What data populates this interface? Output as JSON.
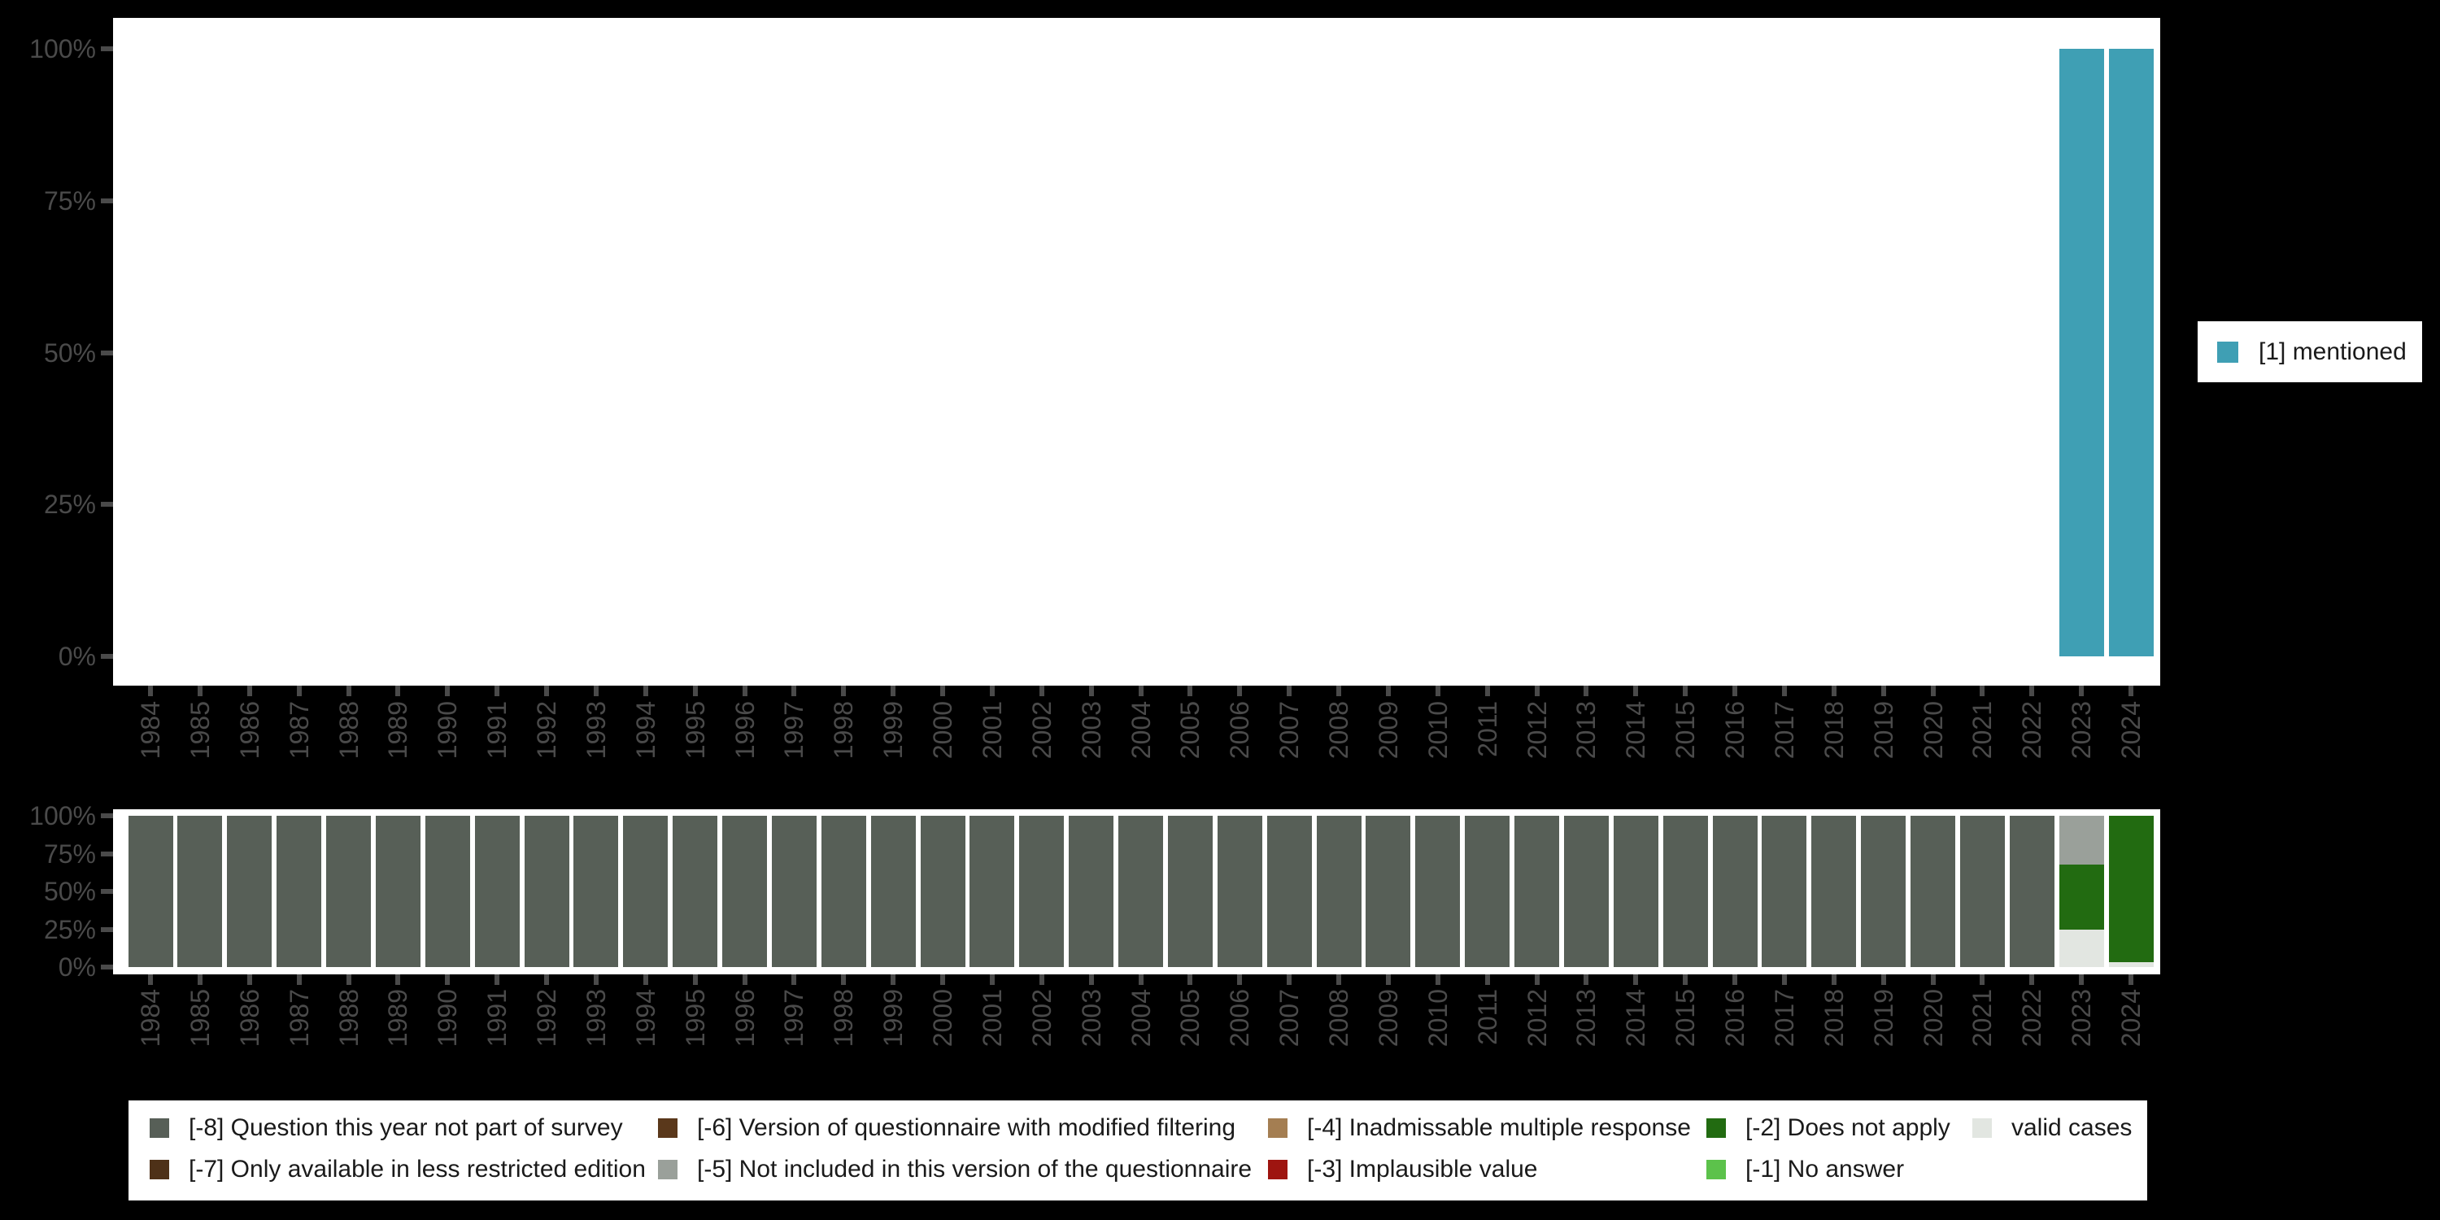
{
  "background_color": "#000000",
  "panel_color": "#ffffff",
  "axis": {
    "tick_color": "#4a4a4a",
    "label_color": "#4a4a4a"
  },
  "colors": {
    "mentioned": "#3f9fb4",
    "minus8": "#575f57",
    "minus7": "#4e3118",
    "minus6": "#5a381b",
    "minus5": "#9aa09a",
    "minus4": "#a47e52",
    "minus3": "#9e1510",
    "minus2": "#226b11",
    "minus1": "#5cc24b",
    "valid": "#e2e6e1"
  },
  "chart_data": [
    {
      "name": "valid-codes-by-year",
      "type": "bar",
      "stacked": true,
      "grid": false,
      "ylim": [
        0,
        100
      ],
      "yticks": [
        100,
        75,
        50,
        25,
        0
      ],
      "ytick_labels": [
        "100%",
        "75%",
        "50%",
        "25%",
        "0%"
      ],
      "categories": [
        1984,
        1985,
        1986,
        1987,
        1988,
        1989,
        1990,
        1991,
        1992,
        1993,
        1994,
        1995,
        1996,
        1997,
        1998,
        1999,
        2000,
        2001,
        2002,
        2003,
        2004,
        2005,
        2006,
        2007,
        2008,
        2009,
        2010,
        2011,
        2012,
        2013,
        2014,
        2015,
        2016,
        2017,
        2018,
        2019,
        2020,
        2021,
        2022,
        2023,
        2024
      ],
      "series": [
        {
          "name": "[1] mentioned",
          "color_key": "mentioned",
          "values_by_year": {
            "2023": 100,
            "2024": 100
          }
        }
      ],
      "legend": {
        "position": "right",
        "items": [
          {
            "label": "[1] mentioned",
            "color_key": "mentioned"
          }
        ]
      }
    },
    {
      "name": "missing-codes-by-year",
      "type": "bar",
      "stacked": true,
      "grid": false,
      "ylim": [
        0,
        100
      ],
      "yticks": [
        100,
        75,
        50,
        25,
        0
      ],
      "ytick_labels": [
        "100%",
        "75%",
        "50%",
        "25%",
        "0%"
      ],
      "categories": [
        1984,
        1985,
        1986,
        1987,
        1988,
        1989,
        1990,
        1991,
        1992,
        1993,
        1994,
        1995,
        1996,
        1997,
        1998,
        1999,
        2000,
        2001,
        2002,
        2003,
        2004,
        2005,
        2006,
        2007,
        2008,
        2009,
        2010,
        2011,
        2012,
        2013,
        2014,
        2015,
        2016,
        2017,
        2018,
        2019,
        2020,
        2021,
        2022,
        2023,
        2024
      ],
      "series": [
        {
          "name": "valid cases",
          "color_key": "valid",
          "values_by_year": {
            "2023": 24.9,
            "2024": 3
          }
        },
        {
          "name": "[-2] Does not apply",
          "color_key": "minus2",
          "values_by_year": {
            "2023": 42.7,
            "2024": 97
          }
        },
        {
          "name": "[-5] Not included in this version of the questionnaire",
          "color_key": "minus5",
          "values_by_year": {
            "2023": 32.4
          }
        },
        {
          "name": "[-8] Question this year not part of survey",
          "color_key": "minus8",
          "values_by_year": {
            "1984": 100,
            "1985": 100,
            "1986": 100,
            "1987": 100,
            "1988": 100,
            "1989": 100,
            "1990": 100,
            "1991": 100,
            "1992": 100,
            "1993": 100,
            "1994": 100,
            "1995": 100,
            "1996": 100,
            "1997": 100,
            "1998": 100,
            "1999": 100,
            "2000": 100,
            "2001": 100,
            "2002": 100,
            "2003": 100,
            "2004": 100,
            "2005": 100,
            "2006": 100,
            "2007": 100,
            "2008": 100,
            "2009": 100,
            "2010": 100,
            "2011": 100,
            "2012": 100,
            "2013": 100,
            "2014": 100,
            "2015": 100,
            "2016": 100,
            "2017": 100,
            "2018": 100,
            "2019": 100,
            "2020": 100,
            "2021": 100,
            "2022": 100
          }
        }
      ]
    }
  ],
  "legend_bottom": {
    "rows": [
      [
        {
          "label": "[-8] Question this year not part of survey",
          "color_key": "minus8"
        },
        {
          "label": "[-6] Version of questionnaire with modified filtering",
          "color_key": "minus6"
        },
        {
          "label": "[-4] Inadmissable multiple response",
          "color_key": "minus4"
        },
        {
          "label": "[-2] Does not apply",
          "color_key": "minus2"
        },
        {
          "label": "valid cases",
          "color_key": "valid"
        }
      ],
      [
        {
          "label": "[-7] Only available in less restricted edition",
          "color_key": "minus7"
        },
        {
          "label": "[-5] Not included in this version of the questionnaire",
          "color_key": "minus5"
        },
        {
          "label": "[-3] Implausible value",
          "color_key": "minus3"
        },
        {
          "label": "[-1] No answer",
          "color_key": "minus1"
        }
      ]
    ]
  }
}
